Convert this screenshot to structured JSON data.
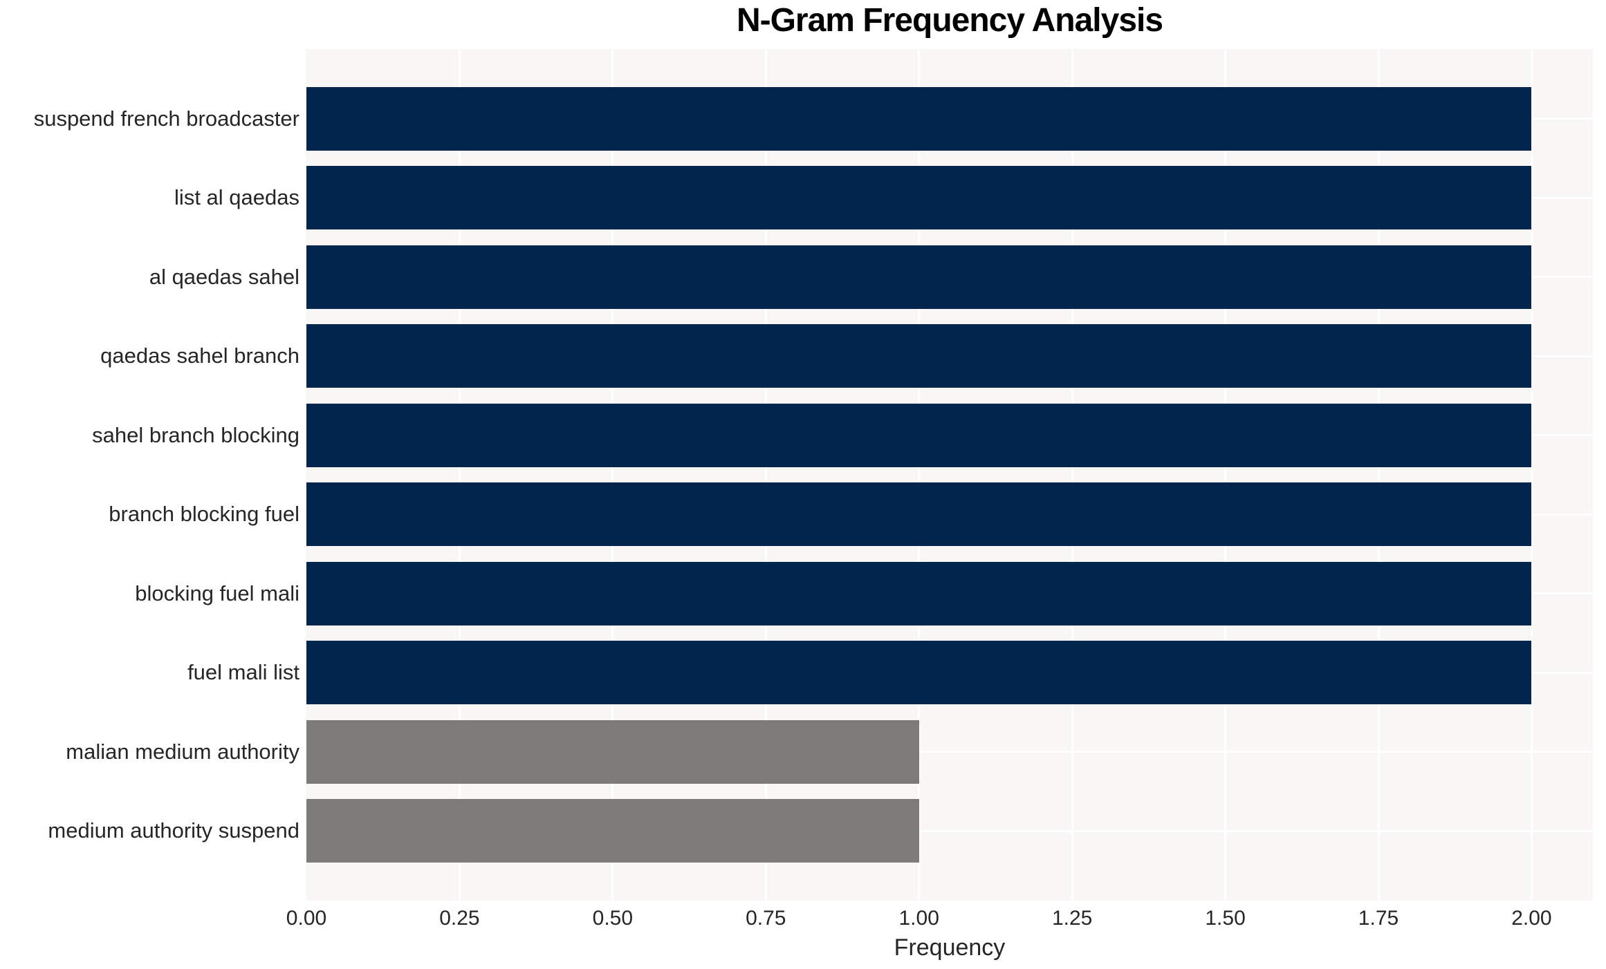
{
  "chart_data": {
    "type": "bar",
    "orientation": "horizontal",
    "title": "N-Gram Frequency Analysis",
    "xlabel": "Frequency",
    "ylabel": "",
    "categories": [
      "suspend french broadcaster",
      "list al qaedas",
      "al qaedas sahel",
      "qaedas sahel branch",
      "sahel branch blocking",
      "branch blocking fuel",
      "blocking fuel mali",
      "fuel mali list",
      "malian medium authority",
      "medium authority suspend"
    ],
    "values": [
      2,
      2,
      2,
      2,
      2,
      2,
      2,
      2,
      1,
      1
    ],
    "bar_colors": [
      "#02254e",
      "#02254e",
      "#02254e",
      "#02254e",
      "#02254e",
      "#02254e",
      "#02254e",
      "#02254e",
      "#7c7b77",
      "#7c7b77"
    ],
    "xlim": [
      0,
      2.1
    ],
    "xtick_values": [
      0,
      0.25,
      0.5,
      0.75,
      1.0,
      1.25,
      1.5,
      1.75,
      2.0
    ],
    "xtick_labels": [
      "0.00",
      "0.25",
      "0.50",
      "0.75",
      "1.00",
      "1.25",
      "1.50",
      "1.75",
      "2.00"
    ],
    "grid": true,
    "legend": null,
    "colors": {
      "plot_background": "#f8f7f6",
      "grid": "#ffffff",
      "text": "#262626",
      "title": "#000000",
      "figure_background": "#ffffff"
    }
  }
}
